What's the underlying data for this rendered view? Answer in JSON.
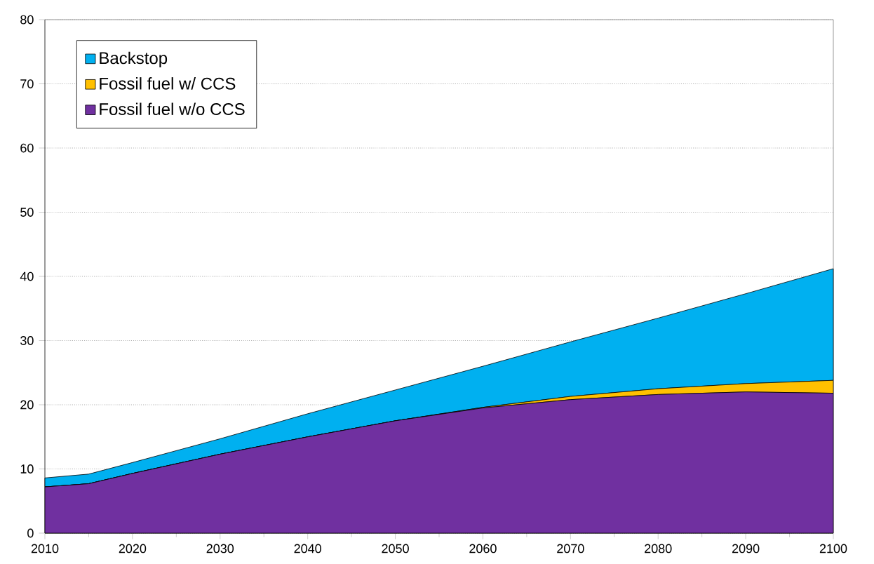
{
  "chart_data": {
    "type": "area",
    "stacked": true,
    "x": [
      2010,
      2015,
      2020,
      2030,
      2040,
      2050,
      2060,
      2070,
      2080,
      2090,
      2100
    ],
    "series": [
      {
        "name": "Fossil fuel w/o CCS",
        "color": "#7030a0",
        "values": [
          7.2,
          7.7,
          9.3,
          12.3,
          15.0,
          17.5,
          19.5,
          20.8,
          21.6,
          22.0,
          21.8
        ]
      },
      {
        "name": "Fossil fuel w/ CCS",
        "color": "#ffc000",
        "values": [
          0,
          0,
          0,
          0,
          0,
          0,
          0.1,
          0.5,
          0.9,
          1.3,
          2.0
        ]
      },
      {
        "name": "Backstop",
        "color": "#00b0f0",
        "values": [
          1.4,
          1.5,
          1.7,
          2.4,
          3.6,
          4.8,
          6.4,
          8.5,
          11.0,
          14.0,
          17.4
        ]
      }
    ],
    "xlim": [
      2010,
      2100
    ],
    "xticks": [
      2010,
      2020,
      2030,
      2040,
      2050,
      2060,
      2070,
      2080,
      2090,
      2100
    ],
    "ylim": [
      0,
      80
    ],
    "yticks": [
      0,
      10,
      20,
      30,
      40,
      50,
      60,
      70,
      80
    ],
    "grid": "y",
    "legend": "top left"
  }
}
